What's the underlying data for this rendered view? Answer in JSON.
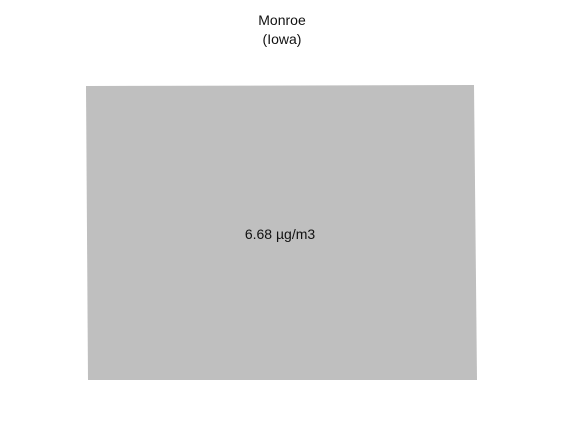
{
  "map": {
    "title": "Monroe",
    "subtitle": "(Iowa)",
    "region_value": "6.68 µg/m3",
    "region_fill": "#bfbfbf",
    "background": "#ffffff"
  }
}
